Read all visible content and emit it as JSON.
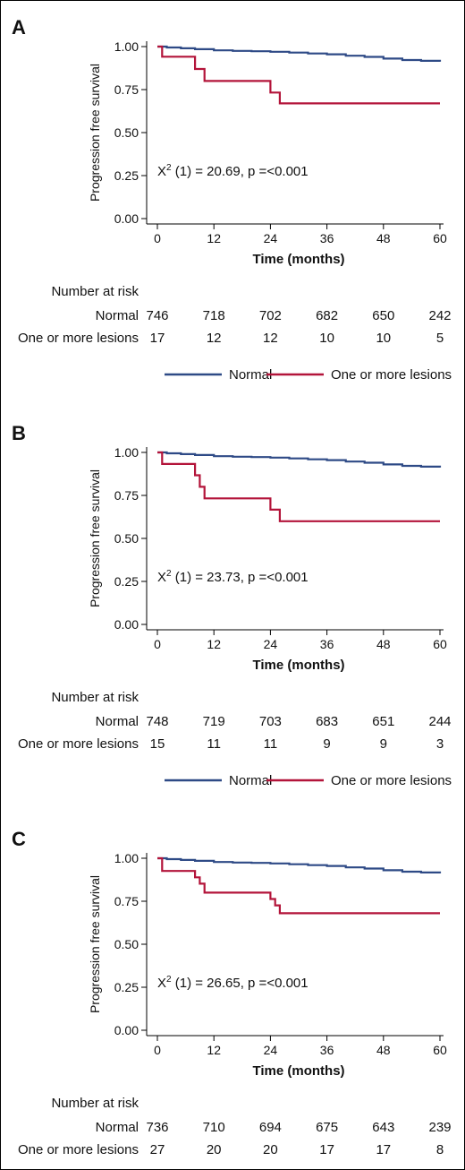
{
  "chart_data": [
    {
      "panel_label": "A",
      "type": "line",
      "ylabel": "Progression free survival",
      "xlabel": "Time (months)",
      "xlim": [
        0,
        60
      ],
      "ylim": [
        0,
        1
      ],
      "xticks": [
        "0",
        "12",
        "24",
        "36",
        "48",
        "60"
      ],
      "yticks": [
        "0.00",
        "0.25",
        "0.50",
        "0.75",
        "1.00"
      ],
      "annotation": {
        "chi": "X",
        "sup": "2",
        "rest": " (1) = 20.69, p =<0.001"
      },
      "series": [
        {
          "name": "Normal",
          "color": "#2e4a86",
          "x": [
            0,
            2,
            5,
            8,
            12,
            16,
            20,
            24,
            28,
            32,
            36,
            40,
            44,
            48,
            52,
            56,
            60
          ],
          "y": [
            1.0,
            0.995,
            0.99,
            0.985,
            0.978,
            0.975,
            0.973,
            0.97,
            0.965,
            0.96,
            0.955,
            0.947,
            0.94,
            0.93,
            0.922,
            0.917,
            0.912
          ]
        },
        {
          "name": "One or more lesions",
          "color": "#b3143a",
          "x": [
            0,
            1,
            8,
            10,
            24,
            26,
            60
          ],
          "y": [
            1.0,
            0.941,
            0.87,
            0.8,
            0.733,
            0.67,
            0.67
          ]
        }
      ],
      "risk_table": {
        "title": "Number at risk",
        "rows": [
          {
            "label": "Normal",
            "values": [
              "746",
              "718",
              "702",
              "682",
              "650",
              "242"
            ]
          },
          {
            "label": "One or more lesions",
            "values": [
              "17",
              "12",
              "12",
              "10",
              "10",
              "5"
            ]
          }
        ]
      }
    },
    {
      "panel_label": "B",
      "type": "line",
      "ylabel": "Progression free survival",
      "xlabel": "Time (months)",
      "xlim": [
        0,
        60
      ],
      "ylim": [
        0,
        1
      ],
      "xticks": [
        "0",
        "12",
        "24",
        "36",
        "48",
        "60"
      ],
      "yticks": [
        "0.00",
        "0.25",
        "0.50",
        "0.75",
        "1.00"
      ],
      "annotation": {
        "chi": "X",
        "sup": "2",
        "rest": " (1) = 23.73, p =<0.001"
      },
      "series": [
        {
          "name": "Normal",
          "color": "#2e4a86",
          "x": [
            0,
            2,
            5,
            8,
            12,
            16,
            20,
            24,
            28,
            32,
            36,
            40,
            44,
            48,
            52,
            56,
            60
          ],
          "y": [
            1.0,
            0.995,
            0.99,
            0.985,
            0.978,
            0.975,
            0.973,
            0.97,
            0.965,
            0.96,
            0.955,
            0.947,
            0.94,
            0.93,
            0.922,
            0.917,
            0.912
          ]
        },
        {
          "name": "One or more lesions",
          "color": "#b3143a",
          "x": [
            0,
            1,
            8,
            9,
            10,
            24,
            26,
            60
          ],
          "y": [
            1.0,
            0.933,
            0.867,
            0.8,
            0.733,
            0.667,
            0.6,
            0.6
          ]
        }
      ],
      "risk_table": {
        "title": "Number at risk",
        "rows": [
          {
            "label": "Normal",
            "values": [
              "748",
              "719",
              "703",
              "683",
              "651",
              "244"
            ]
          },
          {
            "label": "One or more lesions",
            "values": [
              "15",
              "11",
              "11",
              "9",
              "9",
              "3"
            ]
          }
        ]
      }
    },
    {
      "panel_label": "C",
      "type": "line",
      "ylabel": "Progression free survival",
      "xlabel": "Time (months)",
      "xlim": [
        0,
        60
      ],
      "ylim": [
        0,
        1
      ],
      "xticks": [
        "0",
        "12",
        "24",
        "36",
        "48",
        "60"
      ],
      "yticks": [
        "0.00",
        "0.25",
        "0.50",
        "0.75",
        "1.00"
      ],
      "annotation": {
        "chi": "X",
        "sup": "2",
        "rest": " (1) = 26.65, p =<0.001"
      },
      "series": [
        {
          "name": "Normal",
          "color": "#2e4a86",
          "x": [
            0,
            2,
            5,
            8,
            12,
            16,
            20,
            24,
            28,
            32,
            36,
            40,
            44,
            48,
            52,
            56,
            60
          ],
          "y": [
            1.0,
            0.995,
            0.99,
            0.985,
            0.978,
            0.975,
            0.973,
            0.97,
            0.965,
            0.96,
            0.955,
            0.947,
            0.94,
            0.93,
            0.922,
            0.917,
            0.912
          ]
        },
        {
          "name": "One or more lesions",
          "color": "#b3143a",
          "x": [
            0,
            1,
            8,
            9,
            10,
            24,
            25,
            26,
            60
          ],
          "y": [
            1.0,
            0.926,
            0.889,
            0.852,
            0.8,
            0.763,
            0.726,
            0.68,
            0.68
          ]
        }
      ],
      "risk_table": {
        "title": "Number at risk",
        "rows": [
          {
            "label": "Normal",
            "values": [
              "736",
              "710",
              "694",
              "675",
              "643",
              "239"
            ]
          },
          {
            "label": "One or more lesions",
            "values": [
              "27",
              "20",
              "20",
              "17",
              "17",
              "8"
            ]
          }
        ]
      }
    }
  ]
}
